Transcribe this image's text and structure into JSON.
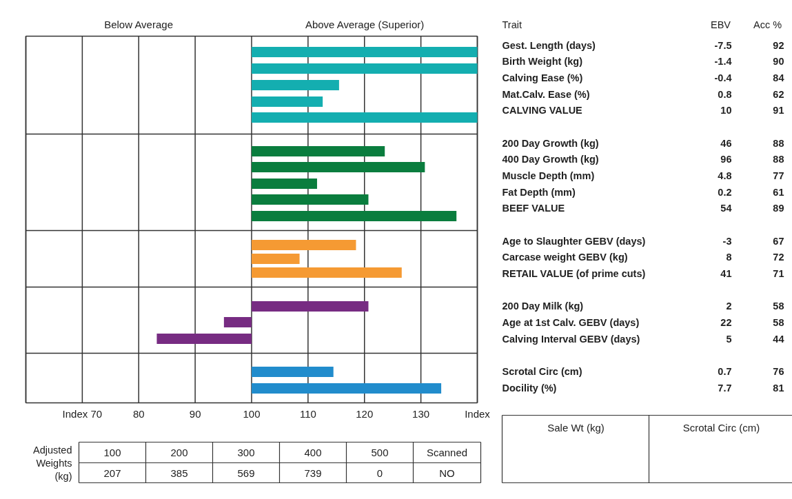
{
  "chart_data": {
    "type": "bar",
    "orientation": "horizontal",
    "ylabel": "Trait",
    "categories": [
      "Gest. Length (days)",
      "Birth Weight (kg)",
      "Calving Ease (%)",
      "Mat.Calv. Ease (%)",
      "CALVING VALUE",
      "200 Day Growth (kg)",
      "400 Day Growth (kg)",
      "Muscle Depth (mm)",
      "Fat Depth (mm)",
      "BEEF VALUE",
      "Age to Slaughter GEBV (days)",
      "Carcase weight GEBV (kg)",
      "RETAIL VALUE (of prime cuts)",
      "200 Day Milk (kg)",
      "Age at 1st Calv. GEBV (days)",
      "Calving Interval GEBV (days)",
      "Scrotal Circ (cm)",
      "Docility (%)"
    ],
    "base": [
      100,
      100,
      100,
      100,
      100,
      100,
      100,
      100,
      100,
      100,
      100,
      100,
      100,
      100,
      100,
      100,
      100,
      100
    ],
    "values": [
      40,
      40,
      15.5,
      12.6,
      40,
      23.6,
      30.7,
      11.6,
      20.7,
      36.3,
      18.5,
      8.5,
      26.6,
      20.7,
      -4.9,
      -16.8,
      14.5,
      33.6
    ],
    "colors": [
      "#14aeb0",
      "#14aeb0",
      "#14aeb0",
      "#14aeb0",
      "#14aeb0",
      "#0a7d3e",
      "#0a7d3e",
      "#0a7d3e",
      "#0a7d3e",
      "#0a7d3e",
      "#f59a33",
      "#f59a33",
      "#f59a33",
      "#772c82",
      "#772c82",
      "#772c82",
      "#218ccc",
      "#218ccc"
    ],
    "xlim": [
      60,
      140
    ],
    "xticks": [
      {
        "value": 70,
        "label": "Index 70"
      },
      80,
      90,
      100,
      110,
      120,
      130,
      {
        "value": 140,
        "label": "Index"
      }
    ],
    "grid": true,
    "annotations": [
      "Below Average",
      "Above Average (Superior)",
      "EBV",
      "Acc %",
      "-7.5",
      "-1.4",
      "-0.4",
      "0.8",
      "10",
      "46",
      "96",
      "4.8",
      "0.2",
      "54",
      "-3",
      "8",
      "41",
      "2",
      "22",
      "5",
      "0.7",
      "7.7",
      "92",
      "90",
      "84",
      "62",
      "91",
      "88",
      "88",
      "77",
      "61",
      "89",
      "67",
      "72",
      "71",
      "58",
      "58",
      "44",
      "76",
      "81",
      "Adjusted Weights (kg)",
      "100",
      "200",
      "300",
      "400",
      "500",
      "Scanned",
      "207",
      "385",
      "569",
      "739",
      "0",
      "NO",
      "Sale Wt (kg)",
      "Scrotal Circ (cm)"
    ]
  }
}
